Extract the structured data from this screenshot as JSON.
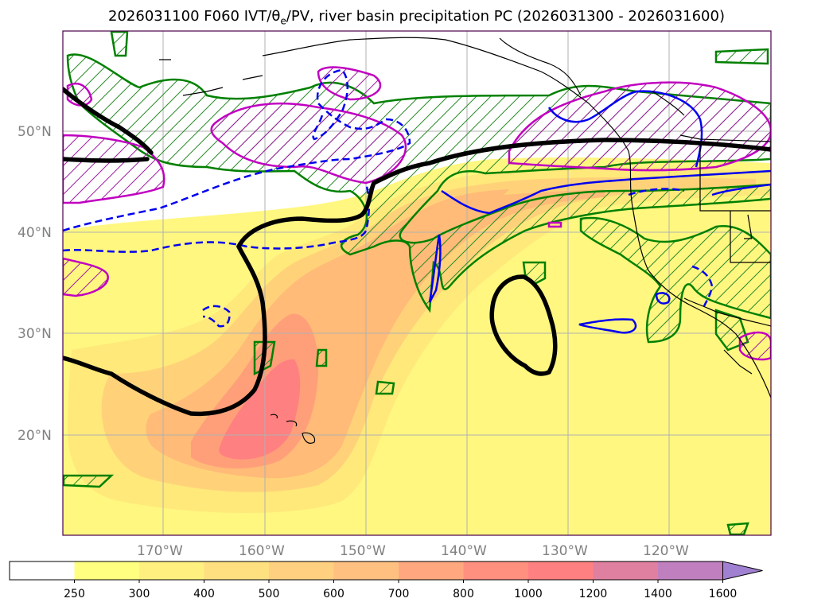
{
  "title_text": "2026031100 F060 IVT/θ",
  "title_sub": "e",
  "title_rest": "/PV, river basin precipitation PC (2026031300 - 2026031600)",
  "lat_labels": [
    "50°N",
    "40°N",
    "30°N",
    "20°N"
  ],
  "lon_labels": [
    "170°W",
    "160°W",
    "150°W",
    "140°W",
    "130°W",
    "120°W"
  ],
  "colorbar": {
    "levels": [
      "250",
      "300",
      "400",
      "500",
      "600",
      "700",
      "800",
      "1000",
      "1200",
      "1400",
      "1600"
    ],
    "colors": [
      "#ffffff",
      "#ffff80",
      "#fff080",
      "#ffe080",
      "#ffd080",
      "#ffc080",
      "#ffa880",
      "#ff9080",
      "#ff8080",
      "#e080a0",
      "#c080c0",
      "#a080d0"
    ],
    "extend": "max"
  },
  "legend_colors": {
    "ivt_fill": [
      "#fff780",
      "#ffe97a",
      "#ffd27a",
      "#ffbb77",
      "#ff9f7a",
      "#ff8080"
    ],
    "theta_e_contour": "#0000ee",
    "pv_contour": "#000000",
    "precip_pc_positive": "#008000",
    "precip_pc_negative": "#c000c0",
    "coastline": "#000000",
    "grid": "#b0b0b0"
  }
}
